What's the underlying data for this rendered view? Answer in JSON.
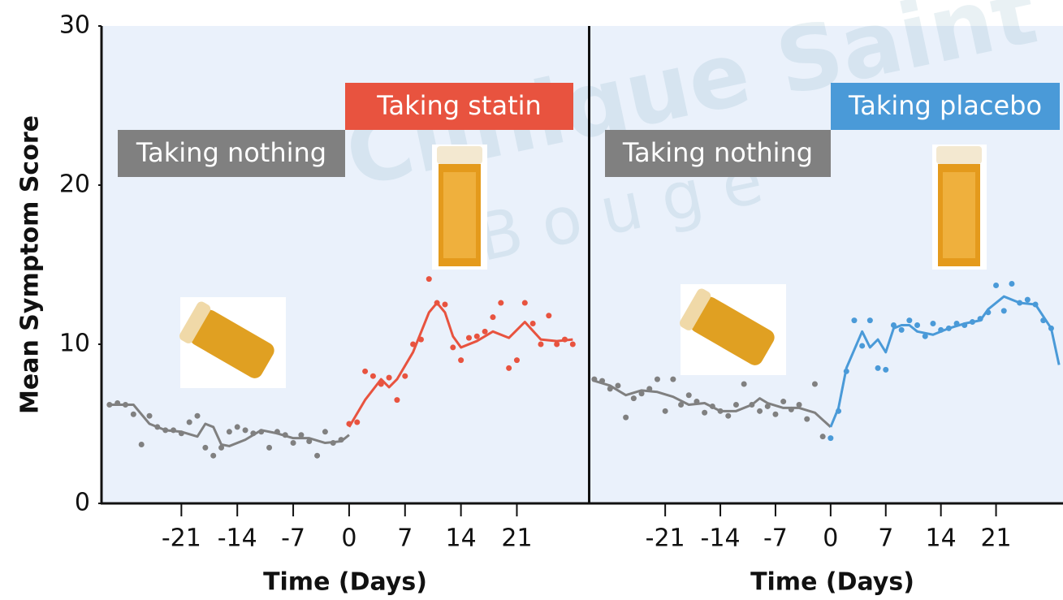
{
  "chart_data": [
    {
      "type": "line",
      "ylabel": "Mean Symptom Score",
      "xlabel": "Time (Days)",
      "xlim": [
        -31,
        30
      ],
      "ylim": [
        0,
        30
      ],
      "yticks": [
        0,
        10,
        20,
        30
      ],
      "xticks": [
        -21,
        -14,
        -7,
        0,
        7,
        14,
        21
      ],
      "series": [
        {
          "name": "Taking nothing",
          "color": "#808080",
          "x": [
            -30,
            -27,
            -25,
            -23,
            -21,
            -19,
            -18,
            -17,
            -16,
            -15,
            -13,
            -11,
            -9,
            -7,
            -5,
            -3,
            -1,
            0
          ],
          "values": [
            6.2,
            6.2,
            5,
            4.6,
            4.5,
            4.2,
            5,
            4.8,
            3.7,
            3.6,
            4,
            4.6,
            4.4,
            4.1,
            4.1,
            3.8,
            3.9,
            4.3
          ],
          "dots_x": [
            -30,
            -29,
            -28,
            -27,
            -26,
            -25,
            -24,
            -23,
            -22,
            -21,
            -20,
            -19,
            -18,
            -17,
            -16,
            -15,
            -14,
            -13,
            -12,
            -11,
            -10,
            -9,
            -8,
            -7,
            -6,
            -5,
            -4,
            -3,
            -2,
            -1
          ],
          "dots": [
            6.2,
            6.3,
            6.2,
            5.6,
            3.7,
            5.5,
            4.8,
            4.6,
            4.6,
            4.4,
            5.1,
            5.5,
            3.5,
            3,
            3.5,
            4.5,
            4.8,
            4.6,
            4.4,
            4.5,
            3.5,
            4.5,
            4.3,
            3.8,
            4.3,
            3.9,
            3,
            4.5,
            3.8,
            4
          ]
        },
        {
          "name": "Taking statin",
          "color": "#e8533f",
          "x": [
            0,
            2,
            4,
            5,
            6,
            8,
            10,
            11,
            12,
            13,
            14,
            16,
            18,
            20,
            22,
            24,
            26,
            28
          ],
          "values": [
            4.8,
            6.5,
            7.8,
            7.3,
            7.8,
            9.5,
            12,
            12.6,
            12,
            10.5,
            9.8,
            10.2,
            10.8,
            10.4,
            11.4,
            10.3,
            10.2,
            10.3
          ],
          "dots_x": [
            0,
            1,
            2,
            3,
            4,
            5,
            6,
            7,
            8,
            9,
            10,
            11,
            12,
            13,
            14,
            15,
            16,
            17,
            18,
            19,
            20,
            21,
            22,
            23,
            24,
            25,
            26,
            27,
            28
          ],
          "dots": [
            5,
            5.1,
            8.3,
            8,
            7.5,
            7.9,
            6.5,
            8,
            10,
            10.3,
            14.1,
            12.6,
            12.5,
            9.8,
            9,
            10.4,
            10.5,
            10.8,
            11.7,
            12.6,
            8.5,
            9,
            12.6,
            11.3,
            10,
            11.8,
            10,
            10.3,
            10
          ]
        }
      ]
    },
    {
      "type": "line",
      "xlabel": "Time (Days)",
      "xlim": [
        -30.5,
        29.5
      ],
      "ylim": [
        0,
        30
      ],
      "xticks": [
        -21,
        -14,
        -7,
        0,
        7,
        14,
        21
      ],
      "series": [
        {
          "name": "Taking nothing",
          "color": "#808080",
          "x": [
            -30,
            -28,
            -26,
            -24,
            -22,
            -20,
            -18,
            -16,
            -14,
            -12,
            -10,
            -9,
            -8,
            -6,
            -4,
            -2,
            0
          ],
          "values": [
            7.7,
            7.4,
            6.8,
            7.1,
            7,
            6.7,
            6.2,
            6.3,
            5.8,
            5.8,
            6.2,
            6.6,
            6.3,
            6,
            6,
            5.7,
            4.8
          ],
          "dots_x": [
            -30,
            -29,
            -28,
            -27,
            -26,
            -25,
            -24,
            -23,
            -22,
            -21,
            -20,
            -19,
            -18,
            -17,
            -16,
            -15,
            -14,
            -13,
            -12,
            -11,
            -10,
            -9,
            -8,
            -7,
            -6,
            -5,
            -4,
            -3,
            -2,
            -1
          ],
          "dots": [
            7.8,
            7.7,
            7.2,
            7.4,
            5.4,
            6.6,
            6.9,
            7.2,
            7.8,
            5.8,
            7.8,
            6.2,
            6.8,
            6.4,
            5.7,
            6.1,
            5.8,
            5.5,
            6.2,
            7.5,
            6.2,
            5.8,
            6.1,
            5.6,
            6.4,
            5.9,
            6.2,
            5.3,
            7.5,
            4.2
          ]
        },
        {
          "name": "Taking placebo",
          "color": "#4a9ad8",
          "x": [
            0,
            1,
            2,
            4,
            5,
            6,
            7,
            8,
            9,
            10,
            11,
            13,
            15,
            17,
            19,
            20,
            22,
            24,
            26,
            28,
            29
          ],
          "values": [
            4.8,
            6,
            8.5,
            10.8,
            9.8,
            10.3,
            9.5,
            11,
            11.2,
            11.2,
            10.8,
            10.6,
            11,
            11.3,
            11.5,
            12.2,
            13,
            12.6,
            12.5,
            11,
            8.7
          ],
          "dots_x": [
            0,
            1,
            2,
            3,
            4,
            5,
            6,
            7,
            8,
            9,
            10,
            11,
            12,
            13,
            14,
            15,
            16,
            17,
            18,
            19,
            20,
            21,
            22,
            23,
            24,
            25,
            26,
            27,
            28
          ],
          "dots": [
            4.1,
            5.8,
            8.3,
            11.5,
            9.9,
            11.5,
            8.5,
            8.4,
            11.2,
            10.9,
            11.5,
            11.2,
            10.5,
            11.3,
            10.9,
            11,
            11.3,
            11.2,
            11.4,
            11.6,
            12,
            13.7,
            12.1,
            13.8,
            12.6,
            12.8,
            12.5,
            11.5,
            11
          ]
        }
      ]
    }
  ],
  "watermark": [
    "Clinique Saint",
    "B o u g e"
  ]
}
